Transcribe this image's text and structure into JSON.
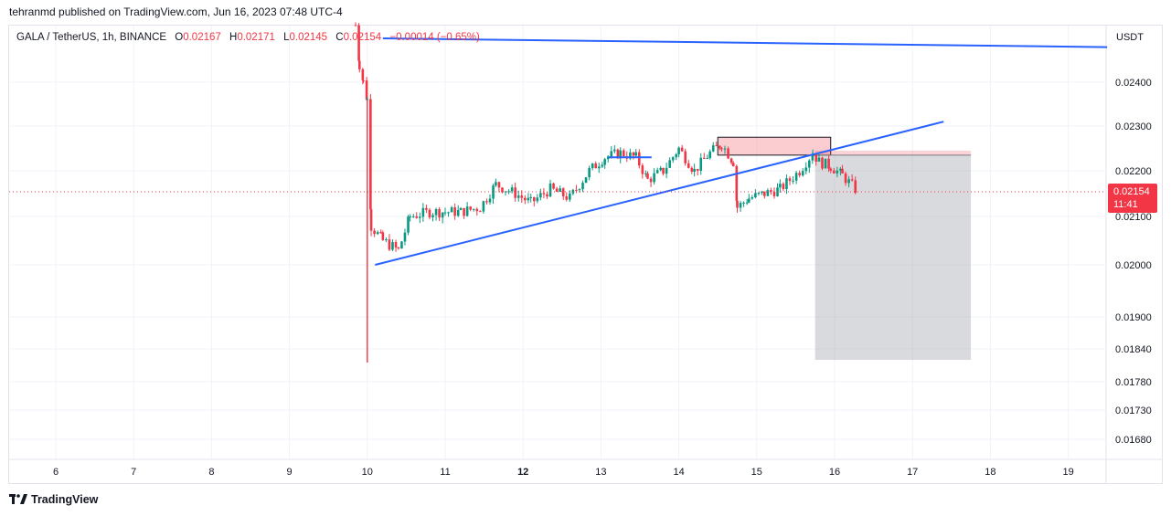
{
  "header": {
    "published_text": "tehranmd published on TradingView.com, Jun 16, 2023 07:48 UTC-4"
  },
  "legend": {
    "symbol": "GALA / TetherUS, 1h, BINANCE",
    "open_label": "O",
    "open": "0.02167",
    "high_label": "H",
    "high": "0.02171",
    "low_label": "L",
    "low": "0.02145",
    "close_label": "C",
    "close": "0.02154",
    "change": "−0.00014 (−0.65%)"
  },
  "price_badge": {
    "price": "0.02154",
    "countdown": "11:41"
  },
  "footer": {
    "brand": "TradingView"
  },
  "colors": {
    "up": "#089981",
    "down": "#f23645",
    "trendline": "#2962ff",
    "axis_text": "#131722",
    "grid": "#f0f3fa"
  },
  "chart_data": {
    "type": "candlestick",
    "currency_label": "USDT",
    "y_ticks": [
      0.024,
      0.023,
      0.022,
      0.021,
      0.02,
      0.019,
      0.0184,
      0.0178,
      0.0173,
      0.0168
    ],
    "y_tick_labels": [
      "0.02400",
      "0.02300",
      "0.02200",
      "0.02100",
      "0.02000",
      "0.01900",
      "0.01840",
      "0.01780",
      "0.01730",
      "0.01680"
    ],
    "x_ticks": [
      6,
      7,
      8,
      9,
      10,
      11,
      12,
      13,
      14,
      15,
      16,
      17,
      18,
      19
    ],
    "x_tick_labels": [
      "6",
      "7",
      "8",
      "9",
      "10",
      "11",
      "12",
      "13",
      "14",
      "15",
      "16",
      "17",
      "18",
      "19"
    ],
    "bold_x_ticks": [
      "12"
    ],
    "x_unit": "day of June 2023",
    "last_price": 0.02154,
    "price_path": [
      [
        9.85,
        0.0253
      ],
      [
        9.9,
        0.0244
      ],
      [
        9.95,
        0.024
      ],
      [
        10.0,
        0.0236
      ],
      [
        10.05,
        0.0208
      ],
      [
        10.2,
        0.0205
      ],
      [
        10.4,
        0.0203
      ],
      [
        10.55,
        0.021
      ],
      [
        10.8,
        0.0211
      ],
      [
        11.0,
        0.0211
      ],
      [
        11.2,
        0.0211
      ],
      [
        11.45,
        0.0212
      ],
      [
        11.65,
        0.0217
      ],
      [
        11.9,
        0.0215
      ],
      [
        12.1,
        0.0213
      ],
      [
        12.35,
        0.0216
      ],
      [
        12.6,
        0.0214
      ],
      [
        12.85,
        0.022
      ],
      [
        13.05,
        0.0223
      ],
      [
        13.25,
        0.0224
      ],
      [
        13.45,
        0.0223
      ],
      [
        13.6,
        0.0218
      ],
      [
        13.8,
        0.022
      ],
      [
        14.0,
        0.0225
      ],
      [
        14.2,
        0.022
      ],
      [
        14.4,
        0.0224
      ],
      [
        14.55,
        0.0226
      ],
      [
        14.7,
        0.0222
      ],
      [
        14.75,
        0.0212
      ],
      [
        14.9,
        0.0214
      ],
      [
        15.1,
        0.0215
      ],
      [
        15.3,
        0.0216
      ],
      [
        15.55,
        0.022
      ],
      [
        15.72,
        0.0224
      ],
      [
        15.8,
        0.0222
      ],
      [
        15.95,
        0.0221
      ],
      [
        16.1,
        0.0219
      ],
      [
        16.3,
        0.02154
      ]
    ],
    "intraday_low": {
      "x": 10.0,
      "low": 0.01815
    },
    "trendlines": [
      {
        "from": [
          10.1,
          0.02
        ],
        "to": [
          17.4,
          0.0231
        ]
      },
      {
        "from": [
          10.2,
          0.025
        ],
        "to": [
          19.5,
          0.0248
        ]
      },
      {
        "from": [
          13.1,
          0.0223
        ],
        "to": [
          13.65,
          0.0223
        ]
      }
    ],
    "zones": [
      {
        "kind": "sell-zone",
        "x": [
          14.5,
          15.95
        ],
        "y": [
          0.02235,
          0.02275
        ]
      },
      {
        "kind": "short-position-stop",
        "x": [
          15.75,
          17.75
        ],
        "y": [
          0.02235,
          0.02245
        ]
      },
      {
        "kind": "short-position-target",
        "x": [
          15.75,
          17.75
        ],
        "y": [
          0.0182,
          0.02235
        ]
      }
    ]
  }
}
